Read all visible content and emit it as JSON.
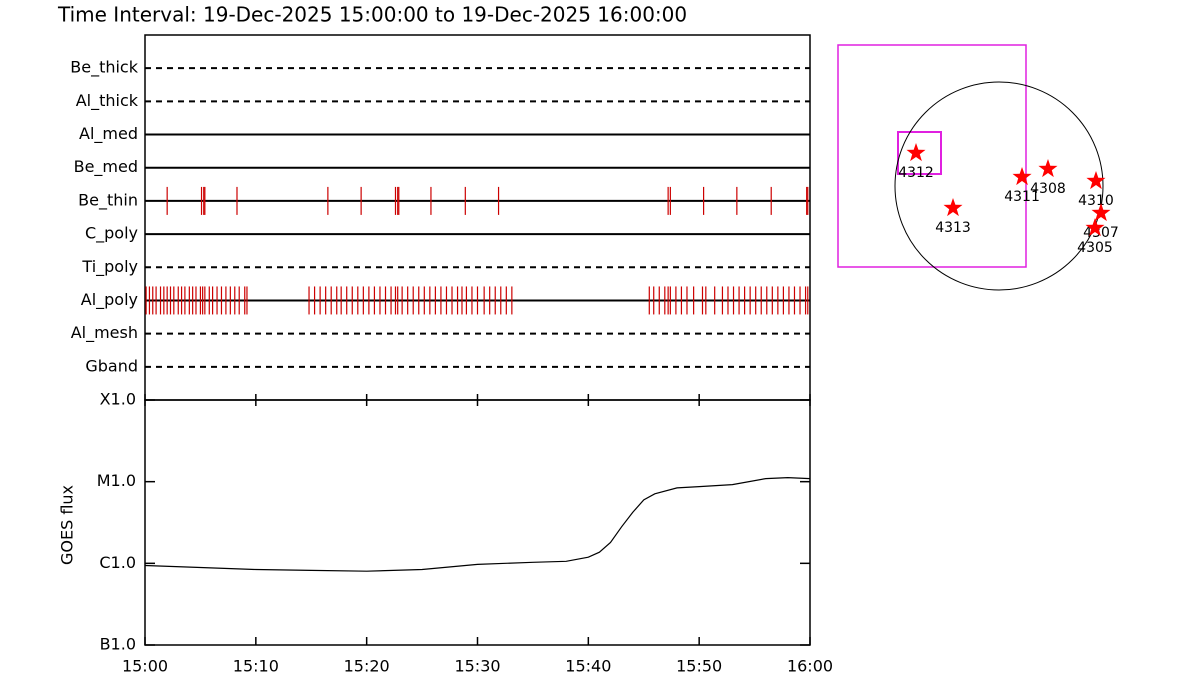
{
  "chart_data": [
    {
      "type": "timeline",
      "title": "Time Interval: 19-Dec-2025 15:00:00 to 19-Dec-2025 16:00:00",
      "categories": [
        "Be_thick",
        "Al_thick",
        "Al_med",
        "Be_med",
        "Be_thin",
        "C_poly",
        "Ti_poly",
        "Al_poly",
        "Al_mesh",
        "Gband"
      ],
      "linestyles": [
        "dashed",
        "dashed",
        "solid",
        "solid",
        "solid",
        "solid",
        "dashed",
        "solid",
        "dashed",
        "dashed"
      ],
      "color": "#cc0000",
      "xlim": [
        0,
        60
      ],
      "events": [
        [],
        [],
        [],
        [],
        [
          2.0,
          5.1,
          5.3,
          5.4,
          8.3,
          16.5,
          19.5,
          22.6,
          22.8,
          22.9,
          25.8,
          28.9,
          31.9,
          47.2,
          47.4,
          50.4,
          53.4,
          56.5,
          59.7,
          59.8
        ],
        [],
        [],
        [
          0.1,
          0.4,
          0.7,
          1.0,
          1.4,
          1.7,
          2.0,
          2.3,
          2.6,
          3.0,
          3.3,
          3.6,
          4.0,
          4.3,
          4.6,
          5.0,
          5.2,
          5.4,
          5.8,
          6.1,
          6.5,
          6.9,
          7.3,
          7.7,
          8.1,
          8.5,
          9.0,
          9.2,
          14.8,
          15.3,
          15.8,
          16.3,
          16.8,
          17.3,
          17.7,
          18.2,
          18.7,
          19.2,
          19.7,
          20.2,
          20.7,
          21.2,
          21.7,
          22.2,
          22.6,
          22.8,
          23.2,
          23.7,
          24.2,
          24.7,
          25.2,
          25.7,
          26.2,
          26.7,
          27.2,
          27.7,
          28.2,
          28.6,
          29.0,
          29.5,
          30.0,
          30.6,
          31.1,
          31.6,
          32.1,
          32.6,
          33.1,
          45.5,
          45.9,
          46.4,
          46.9,
          47.2,
          47.4,
          47.9,
          48.4,
          48.9,
          49.5,
          50.3,
          50.6,
          51.4,
          52.1,
          52.6,
          53.1,
          53.6,
          54.1,
          54.6,
          55.1,
          55.6,
          56.1,
          56.6,
          57.1,
          57.6,
          58.1,
          58.6,
          59.1,
          59.6,
          59.8
        ],
        [],
        []
      ]
    },
    {
      "type": "line",
      "ylabel": "GOES flux",
      "log_scale": true,
      "color": "#000000",
      "x": [
        0,
        5,
        10,
        15,
        20,
        25,
        30,
        35,
        38,
        40,
        41,
        42,
        43,
        44,
        45,
        46,
        48,
        50,
        53,
        56,
        58,
        60
      ],
      "values": [
        9.4e-07,
        8.9e-07,
        8.4e-07,
        8.2e-07,
        8e-07,
        8.4e-07,
        9.7e-07,
        1.03e-06,
        1.06e-06,
        1.19e-06,
        1.37e-06,
        1.8e-06,
        2.8e-06,
        4.2e-06,
        6e-06,
        7.1e-06,
        8.4e-06,
        8.7e-06,
        9.2e-06,
        1.09e-05,
        1.12e-05,
        1.09e-05
      ],
      "xlim": [
        0,
        60
      ],
      "xticks": [
        {
          "value": 0,
          "label": "15:00"
        },
        {
          "value": 10,
          "label": "15:10"
        },
        {
          "value": 20,
          "label": "15:20"
        },
        {
          "value": 30,
          "label": "15:30"
        },
        {
          "value": 40,
          "label": "15:40"
        },
        {
          "value": 50,
          "label": "15:50"
        },
        {
          "value": 60,
          "label": "16:00"
        }
      ],
      "ylim": [
        1e-07,
        0.0001
      ],
      "yticks": [
        {
          "value": 1e-07,
          "label": "B1.0"
        },
        {
          "value": 1e-06,
          "label": "C1.0"
        },
        {
          "value": 1e-05,
          "label": "M1.0"
        },
        {
          "value": 0.0001,
          "label": "X1.0"
        }
      ]
    },
    {
      "type": "scatter",
      "color": "#ff0000",
      "limb_radius": 975,
      "xlim": [
        -1100,
        1100
      ],
      "ylim": [
        -1100,
        1100
      ],
      "labels": [
        "4312",
        "4313",
        "4311",
        "4308",
        "4310",
        "4307",
        "4305"
      ],
      "x": [
        -778,
        -431,
        216,
        459,
        909,
        956,
        900
      ],
      "values": [
        309,
        -206,
        84,
        159,
        47,
        -253,
        -394
      ]
    }
  ]
}
